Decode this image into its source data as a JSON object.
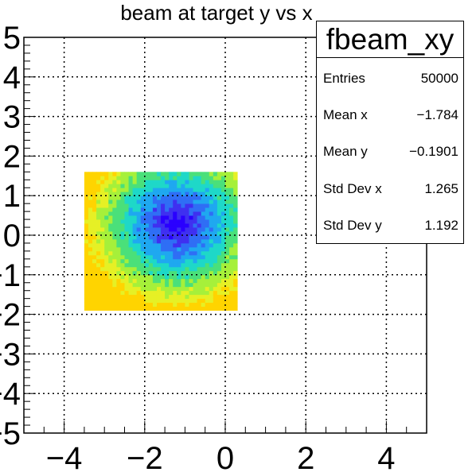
{
  "chart_data": {
    "type": "heatmap",
    "title": "beam at target y vs x",
    "xlabel": "",
    "ylabel": "",
    "xlim": [
      -5,
      5
    ],
    "ylim": [
      -5,
      5
    ],
    "x_ticks": [
      "−4",
      "−2",
      "0",
      "2",
      "4"
    ],
    "y_ticks": [
      "−5",
      "−4",
      "−3",
      "−2",
      "−1",
      "0",
      "1",
      "2",
      "3",
      "4",
      "5"
    ],
    "grid": true,
    "filled_region": {
      "x": [
        -3.5,
        0.3
      ],
      "y": [
        -1.9,
        1.6
      ]
    },
    "peak_center": {
      "x": -1.2,
      "y": 0.3
    },
    "colorscale": [
      "#2a00ff",
      "#3f30f0",
      "#2f6ef5",
      "#1fa8f0",
      "#1ed8c8",
      "#4ae07a",
      "#a6f03a",
      "#e6f025",
      "#ffd400"
    ]
  },
  "stats": {
    "title": "fbeam_xy",
    "rows": [
      {
        "key": "Entries",
        "value": "50000"
      },
      {
        "key": "Mean x",
        "value": "−1.784"
      },
      {
        "key": "Mean y",
        "value": "−0.1901"
      },
      {
        "key": "Std Dev x",
        "value": "1.265"
      },
      {
        "key": "Std Dev y",
        "value": "1.192"
      }
    ]
  }
}
